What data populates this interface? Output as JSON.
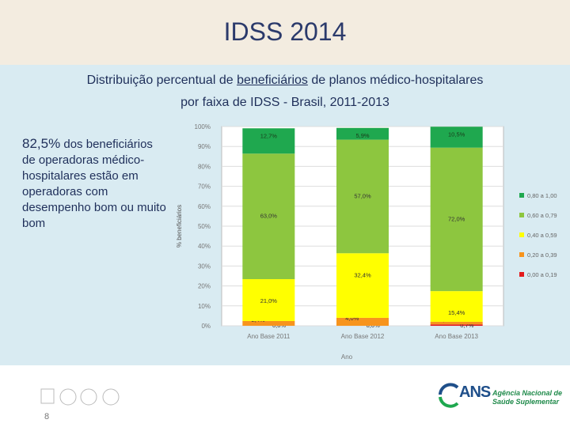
{
  "header": {
    "title": "IDSS 2014"
  },
  "subtitle": {
    "line1_pre": "Distribuição percentual de ",
    "line1_ul": "beneficiários",
    "line1_post": " de planos médico-hospitalares",
    "line2": "por faixa de IDSS - Brasil, 2011-2013"
  },
  "note": {
    "highlight": "82,5%",
    "rest1": " dos beneficiários",
    "rest2": "de operadoras médico-hospitalares estão em operadoras com desempenho bom ou muito bom"
  },
  "footer": {
    "page_number": "8",
    "ans_name": "ANS",
    "ans_line1": "Agência Nacional de",
    "ans_line2": "Saúde Suplementar"
  },
  "colors": {
    "c0": "#e31a1c",
    "c1": "#f7941d",
    "c2": "#ffff00",
    "c3": "#8dc63f",
    "c4": "#1fa84f"
  },
  "chart_data": {
    "type": "bar",
    "stacked": true,
    "categories": [
      "Ano Base 2011",
      "Ano Base 2012",
      "Ano Base 2013"
    ],
    "xlabel": "Ano",
    "ylabel": "% beneficiários",
    "ylim": [
      0,
      100
    ],
    "yticks": [
      "0%",
      "10%",
      "20%",
      "30%",
      "40%",
      "50%",
      "60%",
      "70%",
      "80%",
      "90%",
      "100%"
    ],
    "series": [
      {
        "name": "0,00 a 0,19",
        "values": [
          0.0,
          0.0,
          0.7
        ],
        "labels": [
          "0,0%",
          "0,0%",
          "0,7%"
        ]
      },
      {
        "name": "0,20 a 0,39",
        "values": [
          2.4,
          4.0,
          1.3
        ],
        "labels": [
          "2,4%",
          "4,0%",
          "1,3%"
        ]
      },
      {
        "name": "0,40 a 0,59",
        "values": [
          21.0,
          32.4,
          15.4
        ],
        "labels": [
          "21,0%",
          "32,4%",
          "15,4%"
        ]
      },
      {
        "name": "0,60 a 0,79",
        "values": [
          63.0,
          57.0,
          72.0
        ],
        "labels": [
          "63,0%",
          "57,0%",
          "72,0%"
        ]
      },
      {
        "name": "0,80 a 1,00",
        "values": [
          12.7,
          5.9,
          10.5
        ],
        "labels": [
          "12,7%",
          "5,9%",
          "10,5%"
        ]
      }
    ]
  }
}
